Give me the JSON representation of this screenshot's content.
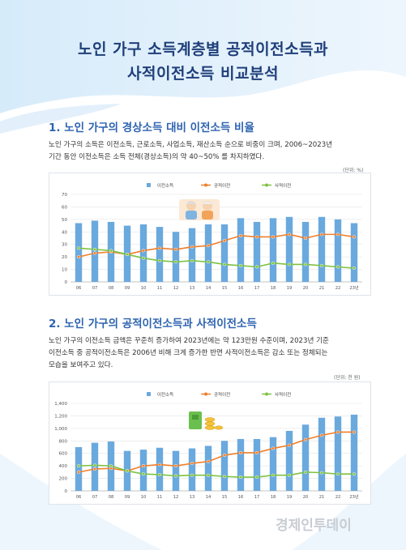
{
  "title_line1": "노인 가구 소득계층별 공적이전소득과",
  "title_line2": "사적이전소득 비교분석",
  "section1": {
    "heading": "1. 노인 가구의 경상소득 대비 이전소득 비율",
    "text_line1": "노인 가구의 소득은 이전소득, 근로소득, 사업소득, 재산소득 순으로 비중이 크며, 2006~2023년",
    "text_line2": "기간 동안 이전소득은 소득 전체(경상소득)의 약 40~50% 를 차지하였다.",
    "unit": "(단위: %)"
  },
  "section2": {
    "heading": "2. 노인 가구의 공적이전소득과 사적이전소득",
    "text_line1": "노인 가구의 이전소득 금액은 꾸준히 증가하여 2023년에는 약 123만원 수준이며, 2023년 기준",
    "text_line2": "이전소득 중 공적이전소득은 2006년 비해 크게 증가한 반면 사적이전소득은 감소 또는 정체되는",
    "text_line3": "모습을 보여주고 있다.",
    "unit": "(단위: 천 원)"
  },
  "watermark": "경제인투데이",
  "colors": {
    "bar": "#6aa9de",
    "public": "#f07f2a",
    "private": "#7ec242",
    "title": "#1f3f7a",
    "heading": "#2d63b0"
  },
  "chart_data": [
    {
      "type": "bar",
      "categories": [
        "06",
        "07",
        "08",
        "09",
        "10",
        "11",
        "12",
        "13",
        "14",
        "15",
        "16",
        "17",
        "18",
        "19",
        "20",
        "21",
        "22",
        "23년"
      ],
      "ylim": [
        0,
        70
      ],
      "yticks": [
        0,
        10,
        20,
        30,
        40,
        50,
        60,
        70
      ],
      "grid": true,
      "legend_position": "top",
      "series": [
        {
          "name": "이전소득",
          "kind": "bar",
          "values": [
            47,
            49,
            48,
            45,
            46,
            44,
            40,
            43,
            46,
            46,
            51,
            48,
            51,
            52,
            48,
            52,
            50,
            47
          ]
        },
        {
          "name": "공적이전",
          "kind": "line",
          "values": [
            20,
            23,
            24,
            22,
            25,
            27,
            26,
            28,
            29,
            33,
            37,
            36,
            36,
            38,
            35,
            38,
            38,
            36
          ]
        },
        {
          "name": "사적이전",
          "kind": "line",
          "values": [
            27,
            26,
            25,
            22,
            19,
            17,
            16,
            17,
            16,
            14,
            13,
            12,
            15,
            14,
            14,
            13,
            12,
            11
          ]
        }
      ]
    },
    {
      "type": "bar",
      "categories": [
        "06",
        "07",
        "08",
        "09",
        "10",
        "11",
        "12",
        "13",
        "14",
        "15",
        "16",
        "17",
        "18",
        "19",
        "20",
        "21",
        "22",
        "23년"
      ],
      "ylim": [
        0,
        1400
      ],
      "yticks": [
        0,
        200,
        400,
        600,
        800,
        1000,
        1200,
        1400
      ],
      "ytick_labels": [
        "0",
        "200",
        "400",
        "600",
        "800",
        "1,000",
        "1,200",
        "1,400"
      ],
      "grid": true,
      "legend_position": "top",
      "series": [
        {
          "name": "이전소득",
          "kind": "bar",
          "values": [
            700,
            770,
            790,
            640,
            660,
            690,
            640,
            680,
            720,
            800,
            830,
            830,
            860,
            960,
            1060,
            1170,
            1190,
            1220
          ]
        },
        {
          "name": "공적이전",
          "kind": "line",
          "values": [
            300,
            350,
            360,
            320,
            400,
            420,
            400,
            440,
            470,
            570,
            610,
            610,
            680,
            730,
            820,
            890,
            940,
            940
          ]
        },
        {
          "name": "사적이전",
          "kind": "line",
          "values": [
            400,
            410,
            400,
            320,
            270,
            260,
            240,
            250,
            250,
            230,
            220,
            220,
            250,
            250,
            300,
            290,
            270,
            270
          ]
        }
      ]
    }
  ]
}
